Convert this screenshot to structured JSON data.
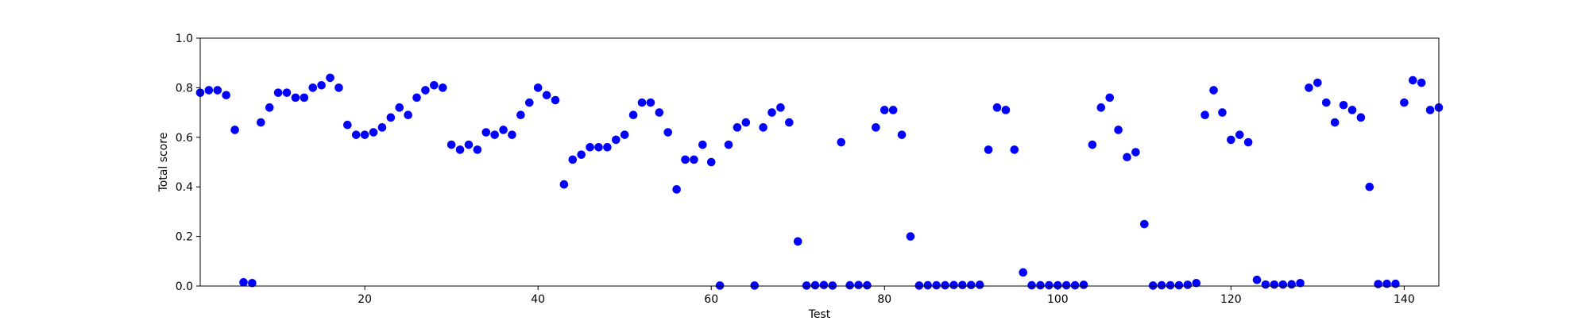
{
  "chart_data": {
    "type": "scatter",
    "title": "",
    "xlabel": "Test",
    "ylabel": "Total score",
    "xlim": [
      1,
      144
    ],
    "ylim": [
      0.0,
      1.0
    ],
    "xticks": [
      20,
      40,
      60,
      80,
      100,
      120,
      140
    ],
    "yticks": [
      "0.0",
      "0.2",
      "0.4",
      "0.6",
      "0.8",
      "1.0"
    ],
    "grid": false,
    "legend": "none",
    "marker_color": "#0000ff",
    "series": [
      {
        "x": [
          1,
          2,
          3,
          4,
          5,
          6,
          7,
          8,
          9,
          10,
          11,
          12,
          13,
          14,
          15,
          16,
          17,
          18,
          19,
          20,
          21,
          22,
          23,
          24,
          25,
          26,
          27,
          28,
          29,
          30,
          31,
          32,
          33,
          34,
          35,
          36,
          37,
          38,
          39,
          40,
          41,
          42,
          43,
          44,
          45,
          46,
          47,
          48,
          49,
          50,
          51,
          52,
          53,
          54,
          55,
          56,
          57,
          58,
          59,
          60,
          61,
          62,
          63,
          64,
          65,
          66,
          67,
          68,
          69,
          70,
          71,
          72,
          73,
          74,
          75,
          76,
          77,
          78,
          79,
          80,
          81,
          82,
          83,
          84,
          85,
          86,
          87,
          88,
          89,
          90,
          91,
          92,
          93,
          94,
          95,
          96,
          97,
          98,
          99,
          100,
          101,
          102,
          103,
          104,
          105,
          106,
          107,
          108,
          109,
          110,
          111,
          112,
          113,
          114,
          115,
          116,
          117,
          118,
          119,
          120,
          121,
          122,
          123,
          124,
          125,
          126,
          127,
          128,
          129,
          130,
          131,
          132,
          133,
          134,
          135,
          136,
          137,
          138,
          139,
          140,
          141,
          142,
          143,
          144
        ],
        "y": [
          0.78,
          0.79,
          0.79,
          0.77,
          0.63,
          0.015,
          0.012,
          0.66,
          0.72,
          0.78,
          0.78,
          0.76,
          0.76,
          0.8,
          0.81,
          0.84,
          0.8,
          0.65,
          0.61,
          0.61,
          0.62,
          0.64,
          0.68,
          0.72,
          0.69,
          0.76,
          0.79,
          0.81,
          0.8,
          0.57,
          0.55,
          0.57,
          0.55,
          0.62,
          0.61,
          0.63,
          0.61,
          0.69,
          0.74,
          0.8,
          0.77,
          0.75,
          0.41,
          0.51,
          0.53,
          0.56,
          0.56,
          0.56,
          0.59,
          0.61,
          0.69,
          0.74,
          0.74,
          0.7,
          0.62,
          0.39,
          0.51,
          0.51,
          0.57,
          0.5,
          0.002,
          0.57,
          0.64,
          0.66,
          0.002,
          0.64,
          0.7,
          0.72,
          0.66,
          0.18,
          0.002,
          0.003,
          0.004,
          0.002,
          0.58,
          0.003,
          0.004,
          0.003,
          0.64,
          0.71,
          0.71,
          0.61,
          0.2,
          0.002,
          0.003,
          0.003,
          0.003,
          0.004,
          0.004,
          0.004,
          0.005,
          0.55,
          0.72,
          0.71,
          0.55,
          0.055,
          0.003,
          0.003,
          0.003,
          0.003,
          0.003,
          0.003,
          0.005,
          0.57,
          0.72,
          0.76,
          0.63,
          0.52,
          0.54,
          0.25,
          0.002,
          0.003,
          0.003,
          0.003,
          0.005,
          0.012,
          0.69,
          0.79,
          0.7,
          0.59,
          0.61,
          0.58,
          0.025,
          0.006,
          0.006,
          0.006,
          0.007,
          0.012,
          0.8,
          0.82,
          0.74,
          0.66,
          0.73,
          0.71,
          0.68,
          0.4,
          0.008,
          0.009,
          0.009,
          0.74,
          0.83,
          0.82,
          0.71,
          0.72
        ]
      }
    ]
  }
}
